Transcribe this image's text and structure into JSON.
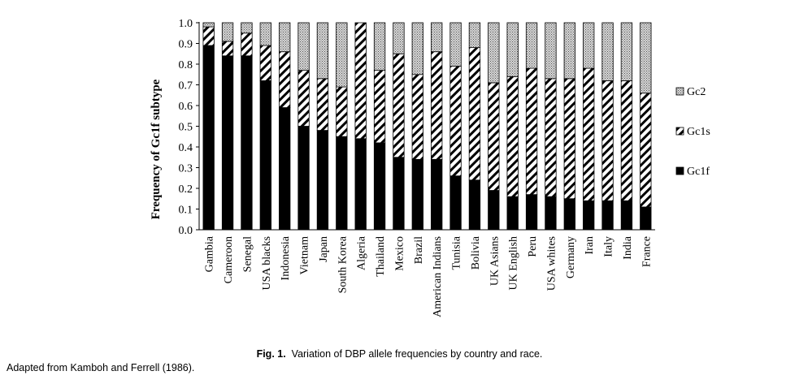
{
  "chart_data": {
    "type": "bar",
    "stacked": true,
    "ylabel": "Frequency of Gc1f subtype",
    "ylim": [
      0,
      1.0
    ],
    "yticks": [
      "0.0",
      "0.1",
      "0.2",
      "0.3",
      "0.4",
      "0.5",
      "0.6",
      "0.7",
      "0.8",
      "0.9",
      "1.0"
    ],
    "categories": [
      "Gambia",
      "Cameroon",
      "Senegal",
      "USA blacks",
      "Indonesia",
      "Vietnam",
      "Japan",
      "South Korea",
      "Algeria",
      "Thailand",
      "Mexico",
      "Brazil",
      "American Indians",
      "Tunisia",
      "Bolivia",
      "UK Asians",
      "UK English",
      "Peru",
      "USA whites",
      "Germany",
      "Iran",
      "Italy",
      "India",
      "France"
    ],
    "series": [
      {
        "name": "Gc1f",
        "pattern": "solid black",
        "values": [
          0.89,
          0.84,
          0.84,
          0.72,
          0.59,
          0.5,
          0.48,
          0.45,
          0.44,
          0.42,
          0.35,
          0.34,
          0.34,
          0.26,
          0.24,
          0.19,
          0.16,
          0.17,
          0.16,
          0.15,
          0.14,
          0.14,
          0.14,
          0.11
        ]
      },
      {
        "name": "Gc1s",
        "pattern": "diagonal hatch",
        "values": [
          0.09,
          0.07,
          0.11,
          0.17,
          0.27,
          0.27,
          0.25,
          0.24,
          0.56,
          0.35,
          0.5,
          0.41,
          0.52,
          0.53,
          0.64,
          0.52,
          0.58,
          0.61,
          0.57,
          0.58,
          0.64,
          0.58,
          0.58,
          0.55
        ]
      },
      {
        "name": "Gc2",
        "pattern": "dotted grey",
        "values": [
          0.02,
          0.09,
          0.05,
          0.11,
          0.14,
          0.23,
          0.27,
          0.31,
          0.0,
          0.23,
          0.15,
          0.25,
          0.14,
          0.21,
          0.12,
          0.29,
          0.26,
          0.22,
          0.27,
          0.27,
          0.22,
          0.28,
          0.28,
          0.34
        ]
      }
    ],
    "legend_position": "right",
    "legend_order": [
      "Gc2",
      "Gc1s",
      "Gc1f"
    ],
    "colors": {
      "Gc1f": "#000000",
      "Gc1s": "#ffffff",
      "Gc2": "#a0a0a0"
    }
  },
  "caption": {
    "label": "Fig. 1.",
    "text": "Variation of DBP allele frequencies by country and race."
  },
  "source_note": "Adapted from Kamboh and Ferrell (1986)."
}
